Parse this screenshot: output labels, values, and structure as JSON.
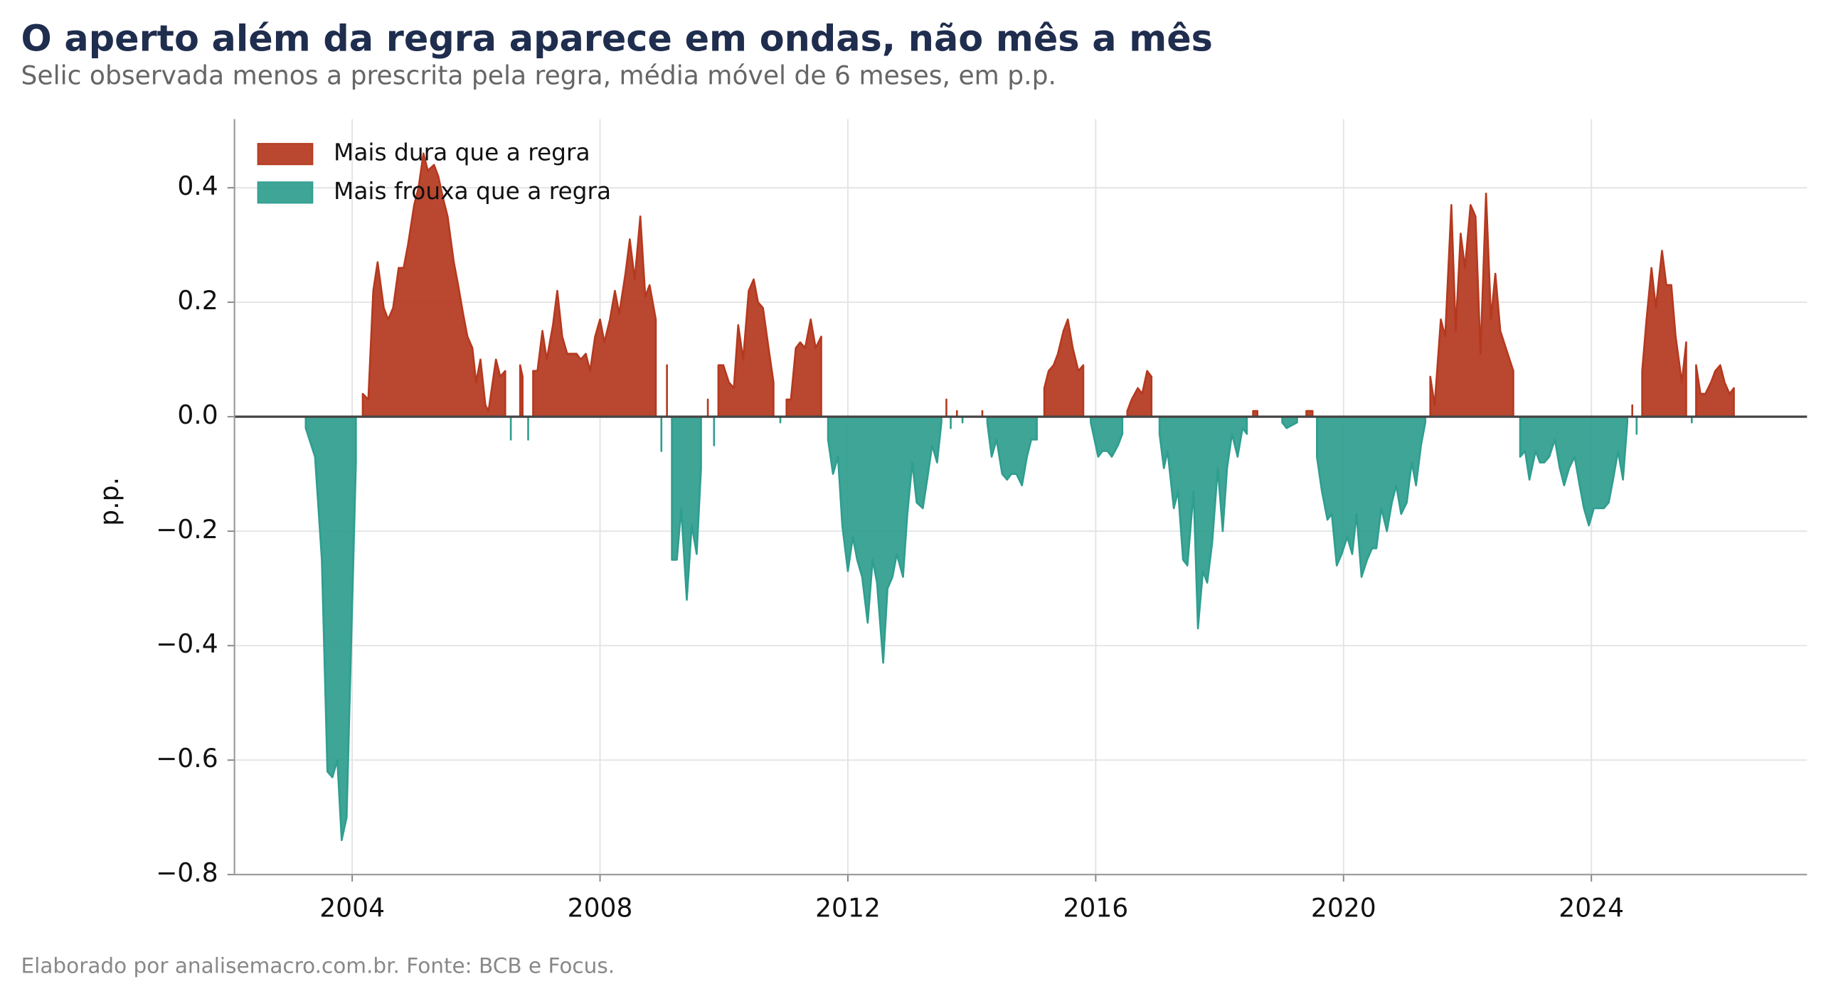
{
  "chart_data": {
    "type": "diverging_area",
    "title": "O aperto além da regra aparece em ondas, não mês a mês",
    "subtitle": "Selic observada menos a prescrita pela regra, média móvel de 6 meses, em p.p.",
    "y_label": "p.p.",
    "footer": "Elaborado por analisemacro.com.br. Fonte: BCB e Focus.",
    "legend": [
      {
        "name": "Mais dura que a regra",
        "color": "#b5391f"
      },
      {
        "name": "Mais frouxa que a regra",
        "color": "#2f9e8f"
      }
    ],
    "legend_loc": "upper left",
    "grid": true,
    "zero_line": true,
    "xlim": [
      2002.1,
      2027.48
    ],
    "xticks": [
      2004,
      2008,
      2012,
      2016,
      2020,
      2024
    ],
    "ylim": [
      -0.8,
      0.52
    ],
    "yticks": [
      {
        "value": -0.8,
        "label": "−0.8"
      },
      {
        "value": -0.6,
        "label": "−0.6"
      },
      {
        "value": -0.4,
        "label": "−0.4"
      },
      {
        "value": -0.2,
        "label": "−0.2"
      },
      {
        "value": 0,
        "label": "0.0"
      },
      0.2,
      0.4
    ],
    "x": [
      2003.25,
      2003.4,
      2003.51,
      2003.6,
      2003.68,
      2003.76,
      2003.83,
      2003.91,
      2004.06,
      2004.17,
      2004.26,
      2004.34,
      2004.41,
      2004.51,
      2004.58,
      2004.66,
      2004.75,
      2004.83,
      2004.9,
      2005.0,
      2005.07,
      2005.15,
      2005.22,
      2005.32,
      2005.39,
      2005.47,
      2005.54,
      2005.64,
      2005.71,
      2005.79,
      2005.86,
      2005.94,
      2006.0,
      2006.07,
      2006.15,
      2006.2,
      2006.32,
      2006.39,
      2006.47,
      2006.56,
      2006.71,
      2006.75,
      2006.84,
      2006.92,
      2006.99,
      2007.07,
      2007.14,
      2007.24,
      2007.31,
      2007.39,
      2007.47,
      2007.54,
      2007.62,
      2007.69,
      2007.77,
      2007.84,
      2007.92,
      2008.0,
      2008.07,
      2008.16,
      2008.24,
      2008.31,
      2008.41,
      2008.48,
      2008.56,
      2008.65,
      2008.73,
      2008.8,
      2008.9,
      2008.99,
      2009.08,
      2009.16,
      2009.24,
      2009.31,
      2009.4,
      2009.48,
      2009.56,
      2009.63,
      2009.74,
      2009.84,
      2009.91,
      2009.99,
      2010.08,
      2010.16,
      2010.23,
      2010.31,
      2010.4,
      2010.48,
      2010.55,
      2010.63,
      2010.72,
      2010.8,
      2010.91,
      2011.01,
      2011.08,
      2011.16,
      2011.23,
      2011.31,
      2011.4,
      2011.48,
      2011.57,
      2011.68,
      2011.76,
      2011.84,
      2011.91,
      2012.0,
      2012.08,
      2012.15,
      2012.23,
      2012.32,
      2012.4,
      2012.47,
      2012.57,
      2012.64,
      2012.72,
      2012.79,
      2012.89,
      2012.96,
      2013.04,
      2013.11,
      2013.21,
      2013.28,
      2013.36,
      2013.44,
      2013.51,
      2013.59,
      2013.66,
      2013.76,
      2013.85,
      2014.17,
      2014.25,
      2014.32,
      2014.4,
      2014.49,
      2014.57,
      2014.64,
      2014.72,
      2014.81,
      2014.89,
      2014.96,
      2015.05,
      2015.17,
      2015.24,
      2015.32,
      2015.39,
      2015.48,
      2015.55,
      2015.63,
      2015.72,
      2015.8,
      2015.92,
      2016.04,
      2016.11,
      2016.19,
      2016.26,
      2016.36,
      2016.43,
      2016.51,
      2016.58,
      2016.68,
      2016.75,
      2016.83,
      2016.9,
      2017.03,
      2017.1,
      2017.16,
      2017.26,
      2017.33,
      2017.41,
      2017.48,
      2017.58,
      2017.65,
      2017.73,
      2017.8,
      2017.88,
      2017.97,
      2018.05,
      2018.12,
      2018.2,
      2018.29,
      2018.37,
      2018.44,
      2018.54,
      2018.61,
      2019.01,
      2019.08,
      2019.25,
      2019.4,
      2019.5,
      2019.57,
      2019.65,
      2019.74,
      2019.81,
      2019.89,
      2019.97,
      2020.06,
      2020.14,
      2020.21,
      2020.29,
      2020.38,
      2020.46,
      2020.53,
      2020.61,
      2020.7,
      2020.78,
      2020.85,
      2020.93,
      2021.02,
      2021.1,
      2021.17,
      2021.25,
      2021.32,
      2021.4,
      2021.47,
      2021.57,
      2021.64,
      2021.74,
      2021.81,
      2021.89,
      2021.96,
      2022.05,
      2022.13,
      2022.21,
      2022.3,
      2022.38,
      2022.45,
      2022.53,
      2022.74,
      2022.85,
      2022.93,
      2023.0,
      2023.1,
      2023.17,
      2023.24,
      2023.32,
      2023.41,
      2023.49,
      2023.56,
      2023.64,
      2023.73,
      2023.81,
      2023.88,
      2023.96,
      2024.04,
      2024.13,
      2024.2,
      2024.28,
      2024.35,
      2024.43,
      2024.51,
      2024.58,
      2024.66,
      2024.73,
      2024.82,
      2024.89,
      2024.97,
      2025.04,
      2025.14,
      2025.21,
      2025.29,
      2025.36,
      2025.46,
      2025.53,
      2025.62,
      2025.69,
      2025.76,
      2025.84,
      2025.93,
      2026.0,
      2026.08,
      2026.15,
      2026.23,
      2026.3
    ],
    "values": [
      -0.02,
      -0.07,
      -0.25,
      -0.62,
      -0.63,
      -0.6,
      -0.74,
      -0.7,
      -0.08,
      0.04,
      0.03,
      0.22,
      0.27,
      0.19,
      0.17,
      0.19,
      0.26,
      0.26,
      0.3,
      0.37,
      0.4,
      0.46,
      0.43,
      0.44,
      0.42,
      0.38,
      0.35,
      0.27,
      0.23,
      0.18,
      0.14,
      0.12,
      0.06,
      0.1,
      0.02,
      0.01,
      0.1,
      0.07,
      0.08,
      -0.04,
      0.09,
      0.07,
      -0.04,
      0.08,
      0.08,
      0.15,
      0.1,
      0.16,
      0.22,
      0.14,
      0.11,
      0.11,
      0.11,
      0.1,
      0.11,
      0.08,
      0.14,
      0.17,
      0.13,
      0.17,
      0.22,
      0.18,
      0.25,
      0.31,
      0.24,
      0.35,
      0.21,
      0.23,
      0.17,
      -0.06,
      0.09,
      -0.25,
      -0.25,
      -0.16,
      -0.32,
      -0.19,
      -0.24,
      -0.09,
      0.03,
      -0.05,
      0.09,
      0.09,
      0.06,
      0.05,
      0.16,
      0.1,
      0.22,
      0.24,
      0.2,
      0.19,
      0.12,
      0.06,
      -0.01,
      0.03,
      0.03,
      0.12,
      0.13,
      0.12,
      0.17,
      0.12,
      0.14,
      -0.04,
      -0.1,
      -0.07,
      -0.19,
      -0.27,
      -0.21,
      -0.25,
      -0.28,
      -0.36,
      -0.25,
      -0.29,
      -0.43,
      -0.3,
      -0.28,
      -0.24,
      -0.28,
      -0.17,
      -0.08,
      -0.15,
      -0.16,
      -0.11,
      -0.05,
      -0.08,
      -0.01,
      0.03,
      -0.02,
      0.01,
      -0.01,
      0.01,
      -0.01,
      -0.07,
      -0.04,
      -0.1,
      -0.11,
      -0.1,
      -0.1,
      -0.12,
      -0.07,
      -0.04,
      -0.04,
      0.05,
      0.08,
      0.09,
      0.11,
      0.15,
      0.17,
      0.12,
      0.08,
      0.09,
      -0.01,
      -0.07,
      -0.06,
      -0.06,
      -0.07,
      -0.05,
      -0.03,
      0.01,
      0.03,
      0.05,
      0.04,
      0.08,
      0.07,
      -0.03,
      -0.09,
      -0.06,
      -0.16,
      -0.13,
      -0.25,
      -0.26,
      -0.13,
      -0.37,
      -0.27,
      -0.29,
      -0.22,
      -0.09,
      -0.2,
      -0.09,
      -0.03,
      -0.07,
      -0.02,
      -0.03,
      0.01,
      0.01,
      -0.01,
      -0.02,
      -0.01,
      0.01,
      0.01,
      -0.07,
      -0.13,
      -0.18,
      -0.17,
      -0.26,
      -0.24,
      -0.21,
      -0.24,
      -0.17,
      -0.28,
      -0.25,
      -0.23,
      -0.23,
      -0.16,
      -0.2,
      -0.15,
      -0.12,
      -0.17,
      -0.15,
      -0.08,
      -0.12,
      -0.05,
      -0.01,
      0.07,
      0.02,
      0.17,
      0.14,
      0.37,
      0.15,
      0.32,
      0.26,
      0.37,
      0.35,
      0.11,
      0.39,
      0.17,
      0.25,
      0.15,
      0.08,
      -0.07,
      -0.06,
      -0.11,
      -0.06,
      -0.08,
      -0.08,
      -0.07,
      -0.04,
      -0.09,
      -0.12,
      -0.09,
      -0.07,
      -0.12,
      -0.16,
      -0.19,
      -0.16,
      -0.16,
      -0.16,
      -0.15,
      -0.11,
      -0.06,
      -0.11,
      -0.01,
      0.02,
      -0.03,
      0.08,
      0.17,
      0.26,
      0.19,
      0.29,
      0.23,
      0.23,
      0.14,
      0.06,
      0.13,
      -0.01,
      0.09,
      0.04,
      0.04,
      0.06,
      0.08,
      0.09,
      0.06,
      0.04,
      0.05
    ]
  }
}
